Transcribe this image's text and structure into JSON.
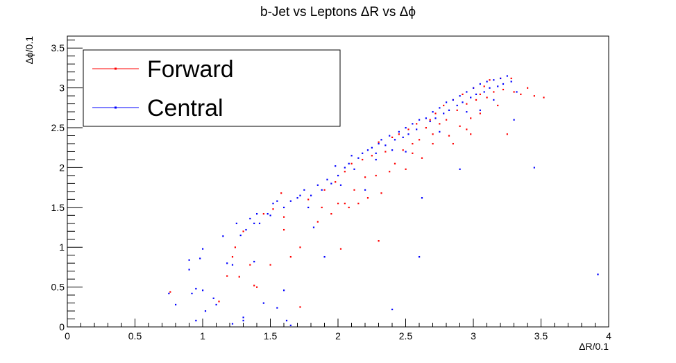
{
  "chart_data": {
    "type": "scatter",
    "title": "b-Jet vs Leptons ΔR vs Δϕ",
    "xlabel": "ΔR/0.1",
    "ylabel": "Δϕ/0.1",
    "xlim": [
      0,
      4
    ],
    "ylim": [
      0,
      3.65
    ],
    "x_ticks": [
      0,
      0.5,
      1,
      1.5,
      2,
      2.5,
      3,
      3.5,
      4
    ],
    "x_tick_labels": [
      "0",
      "0.5",
      "1",
      "1.5",
      "2",
      "2.5",
      "3",
      "3.5",
      "4"
    ],
    "y_ticks": [
      0,
      0.5,
      1,
      1.5,
      2,
      2.5,
      3,
      3.5
    ],
    "y_tick_labels": [
      "0",
      "0.5",
      "1",
      "1.5",
      "2",
      "2.5",
      "3",
      "3.5"
    ],
    "grid": false,
    "legend_position": "top-left",
    "series": [
      {
        "name": "Forward",
        "color": "#ff0000",
        "points": [
          [
            0.76,
            0.44
          ],
          [
            1.12,
            0.32
          ],
          [
            1.18,
            0.64
          ],
          [
            1.22,
            0.88
          ],
          [
            1.24,
            1.0
          ],
          [
            1.27,
            0.63
          ],
          [
            1.3,
            1.2
          ],
          [
            1.35,
            0.78
          ],
          [
            1.38,
            0.52
          ],
          [
            1.4,
            0.5
          ],
          [
            1.45,
            1.42
          ],
          [
            1.5,
            0.78
          ],
          [
            1.52,
            1.48
          ],
          [
            1.58,
            1.68
          ],
          [
            1.6,
            1.22
          ],
          [
            1.65,
            0.88
          ],
          [
            1.72,
            0.25
          ],
          [
            1.72,
            1.0
          ],
          [
            1.78,
            1.6
          ],
          [
            1.85,
            1.32
          ],
          [
            1.88,
            1.5
          ],
          [
            1.9,
            1.72
          ],
          [
            1.95,
            1.42
          ],
          [
            1.98,
            1.82
          ],
          [
            2.0,
            1.55
          ],
          [
            2.02,
            0.98
          ],
          [
            2.05,
            1.95
          ],
          [
            2.08,
            1.5
          ],
          [
            2.1,
            2.05
          ],
          [
            2.12,
            1.72
          ],
          [
            2.15,
            1.55
          ],
          [
            2.18,
            2.1
          ],
          [
            2.2,
            1.88
          ],
          [
            2.22,
            1.62
          ],
          [
            2.25,
            2.15
          ],
          [
            2.28,
            1.9
          ],
          [
            2.3,
            2.32
          ],
          [
            2.3,
            1.08
          ],
          [
            2.32,
            1.68
          ],
          [
            2.35,
            2.2
          ],
          [
            2.38,
            1.95
          ],
          [
            2.4,
            2.38
          ],
          [
            2.42,
            2.05
          ],
          [
            2.45,
            2.42
          ],
          [
            2.48,
            2.22
          ],
          [
            2.5,
            1.98
          ],
          [
            2.52,
            2.48
          ],
          [
            2.55,
            2.3
          ],
          [
            2.58,
            2.55
          ],
          [
            2.6,
            2.35
          ],
          [
            2.62,
            2.12
          ],
          [
            2.65,
            2.5
          ],
          [
            2.68,
            2.6
          ],
          [
            2.7,
            2.42
          ],
          [
            2.72,
            2.68
          ],
          [
            2.75,
            2.55
          ],
          [
            2.78,
            2.78
          ],
          [
            2.8,
            2.6
          ],
          [
            2.82,
            2.4
          ],
          [
            2.85,
            2.85
          ],
          [
            2.88,
            2.72
          ],
          [
            2.9,
            2.52
          ],
          [
            2.92,
            2.92
          ],
          [
            2.95,
            2.8
          ],
          [
            2.98,
            2.62
          ],
          [
            3.0,
            3.0
          ],
          [
            3.02,
            2.85
          ],
          [
            3.05,
            2.68
          ],
          [
            3.08,
            3.02
          ],
          [
            3.1,
            2.88
          ],
          [
            3.12,
            3.1
          ],
          [
            3.15,
            2.95
          ],
          [
            3.18,
            2.78
          ],
          [
            3.2,
            3.12
          ],
          [
            3.22,
            2.98
          ],
          [
            3.25,
            2.42
          ],
          [
            3.28,
            3.12
          ],
          [
            3.3,
            2.95
          ],
          [
            3.35,
            2.92
          ],
          [
            3.4,
            3.0
          ],
          [
            3.45,
            2.9
          ],
          [
            3.52,
            2.88
          ],
          [
            2.05,
            1.55
          ],
          [
            1.6,
            1.38
          ],
          [
            2.55,
            2.18
          ],
          [
            2.7,
            2.3
          ],
          [
            2.85,
            2.3
          ],
          [
            2.95,
            2.48
          ],
          [
            3.05,
            2.92
          ],
          [
            2.98,
            2.42
          ]
        ]
      },
      {
        "name": "Central",
        "color": "#0000ff",
        "points": [
          [
            0.75,
            0.42
          ],
          [
            0.8,
            0.28
          ],
          [
            0.9,
            0.84
          ],
          [
            0.9,
            0.72
          ],
          [
            0.92,
            0.42
          ],
          [
            0.95,
            0.48
          ],
          [
            0.95,
            0.08
          ],
          [
            0.98,
            0.86
          ],
          [
            1.0,
            0.98
          ],
          [
            1.0,
            0.46
          ],
          [
            1.02,
            0.2
          ],
          [
            1.08,
            0.36
          ],
          [
            1.1,
            0.28
          ],
          [
            1.15,
            1.14
          ],
          [
            1.18,
            0.8
          ],
          [
            1.22,
            0.78
          ],
          [
            1.22,
            0.04
          ],
          [
            1.25,
            1.3
          ],
          [
            1.28,
            1.15
          ],
          [
            1.3,
            0.08
          ],
          [
            1.3,
            0.12
          ],
          [
            1.32,
            1.22
          ],
          [
            1.35,
            1.36
          ],
          [
            1.38,
            1.3
          ],
          [
            1.38,
            0.82
          ],
          [
            1.4,
            1.42
          ],
          [
            1.42,
            1.3
          ],
          [
            1.45,
            0.3
          ],
          [
            1.48,
            1.42
          ],
          [
            1.52,
            1.55
          ],
          [
            1.55,
            1.58
          ],
          [
            1.55,
            0.24
          ],
          [
            1.6,
            1.5
          ],
          [
            1.6,
            0.46
          ],
          [
            1.62,
            0.08
          ],
          [
            1.65,
            0.02
          ],
          [
            1.65,
            1.58
          ],
          [
            1.7,
            1.62
          ],
          [
            1.72,
            1.65
          ],
          [
            1.75,
            1.72
          ],
          [
            1.8,
            1.65
          ],
          [
            1.82,
            1.25
          ],
          [
            1.85,
            1.78
          ],
          [
            1.88,
            1.72
          ],
          [
            1.9,
            0.88
          ],
          [
            1.92,
            1.85
          ],
          [
            1.95,
            1.8
          ],
          [
            2.0,
            1.9
          ],
          [
            2.02,
            1.78
          ],
          [
            2.05,
            2.0
          ],
          [
            2.08,
            2.05
          ],
          [
            2.12,
            1.98
          ],
          [
            2.15,
            2.12
          ],
          [
            2.18,
            2.18
          ],
          [
            2.2,
            1.72
          ],
          [
            2.22,
            2.22
          ],
          [
            2.25,
            2.25
          ],
          [
            2.28,
            2.18
          ],
          [
            2.3,
            2.3
          ],
          [
            2.32,
            2.35
          ],
          [
            2.35,
            2.28
          ],
          [
            2.38,
            2.4
          ],
          [
            2.4,
            0.22
          ],
          [
            2.42,
            2.35
          ],
          [
            2.45,
            2.45
          ],
          [
            2.48,
            2.38
          ],
          [
            2.5,
            2.5
          ],
          [
            2.52,
            2.42
          ],
          [
            2.55,
            2.55
          ],
          [
            2.58,
            2.48
          ],
          [
            2.6,
            2.6
          ],
          [
            2.6,
            0.88
          ],
          [
            2.62,
            1.62
          ],
          [
            2.65,
            2.62
          ],
          [
            2.68,
            2.58
          ],
          [
            2.7,
            2.7
          ],
          [
            2.72,
            2.62
          ],
          [
            2.75,
            2.75
          ],
          [
            2.78,
            2.68
          ],
          [
            2.8,
            2.82
          ],
          [
            2.82,
            2.72
          ],
          [
            2.85,
            2.85
          ],
          [
            2.88,
            2.78
          ],
          [
            2.9,
            1.98
          ],
          [
            2.9,
            2.9
          ],
          [
            2.92,
            2.82
          ],
          [
            2.95,
            2.95
          ],
          [
            2.98,
            2.88
          ],
          [
            3.0,
            3.0
          ],
          [
            3.02,
            2.92
          ],
          [
            3.05,
            3.05
          ],
          [
            3.08,
            2.95
          ],
          [
            3.1,
            3.08
          ],
          [
            3.12,
            3.0
          ],
          [
            3.15,
            3.1
          ],
          [
            3.18,
            3.02
          ],
          [
            3.2,
            3.12
          ],
          [
            3.22,
            3.05
          ],
          [
            3.25,
            3.15
          ],
          [
            3.28,
            3.08
          ],
          [
            3.32,
            2.95
          ],
          [
            3.45,
            2.0
          ],
          [
            3.92,
            0.66
          ],
          [
            1.5,
            1.4
          ],
          [
            1.78,
            1.5
          ],
          [
            2.4,
            2.22
          ],
          [
            2.5,
            2.2
          ],
          [
            2.75,
            2.45
          ],
          [
            2.95,
            2.7
          ],
          [
            3.05,
            2.72
          ],
          [
            3.15,
            2.85
          ],
          [
            3.3,
            2.6
          ],
          [
            1.98,
            2.02
          ],
          [
            2.1,
            2.15
          ],
          [
            2.28,
            2.1
          ]
        ]
      }
    ]
  }
}
